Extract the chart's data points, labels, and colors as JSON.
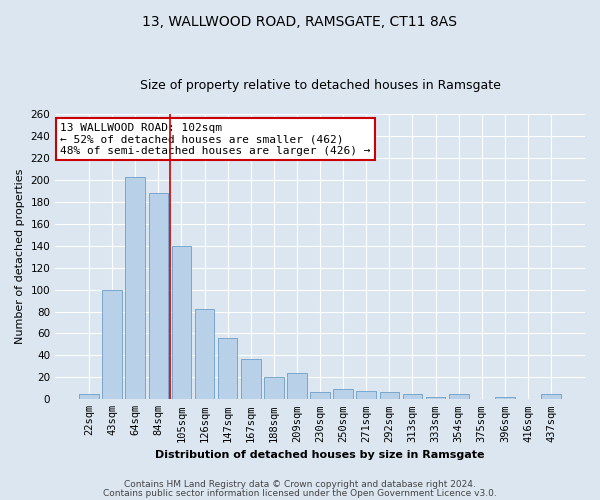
{
  "title": "13, WALLWOOD ROAD, RAMSGATE, CT11 8AS",
  "subtitle": "Size of property relative to detached houses in Ramsgate",
  "xlabel": "Distribution of detached houses by size in Ramsgate",
  "ylabel": "Number of detached properties",
  "bar_labels": [
    "22sqm",
    "43sqm",
    "64sqm",
    "84sqm",
    "105sqm",
    "126sqm",
    "147sqm",
    "167sqm",
    "188sqm",
    "209sqm",
    "230sqm",
    "250sqm",
    "271sqm",
    "292sqm",
    "313sqm",
    "333sqm",
    "354sqm",
    "375sqm",
    "396sqm",
    "416sqm",
    "437sqm"
  ],
  "bar_values": [
    5,
    100,
    203,
    188,
    140,
    82,
    56,
    37,
    20,
    24,
    7,
    9,
    8,
    7,
    5,
    2,
    5,
    0,
    2,
    0,
    5
  ],
  "bar_color": "#b8d0e8",
  "bar_edge_color": "#6a9ec8",
  "ylim": [
    0,
    260
  ],
  "yticks": [
    0,
    20,
    40,
    60,
    80,
    100,
    120,
    140,
    160,
    180,
    200,
    220,
    240,
    260
  ],
  "vline_color": "#cc0000",
  "annotation_line1": "13 WALLWOOD ROAD: 102sqm",
  "annotation_line2": "← 52% of detached houses are smaller (462)",
  "annotation_line3": "48% of semi-detached houses are larger (426) →",
  "annotation_box_color": "#ffffff",
  "annotation_box_edge_color": "#cc0000",
  "footer1": "Contains HM Land Registry data © Crown copyright and database right 2024.",
  "footer2": "Contains public sector information licensed under the Open Government Licence v3.0.",
  "background_color": "#dce6f0",
  "plot_bg_color": "#dce6f0",
  "title_fontsize": 10,
  "subtitle_fontsize": 9,
  "axis_label_fontsize": 8,
  "tick_fontsize": 7.5,
  "footer_fontsize": 6.5,
  "annotation_fontsize": 8
}
